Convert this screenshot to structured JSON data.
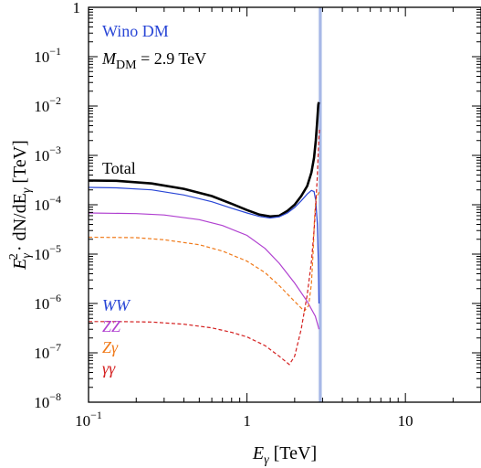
{
  "chart_data": {
    "type": "line",
    "title": "",
    "xlabel": "E_γ [TeV]",
    "ylabel": "E_γ^2 · dN/dE_γ [TeV]",
    "x_scale": "log",
    "y_scale": "log",
    "xlim": [
      0.1,
      30
    ],
    "ylim": [
      1e-08,
      1
    ],
    "grid": false,
    "x_ticks": [
      {
        "value": 0.1,
        "label": "10^-1"
      },
      {
        "value": 1,
        "label": "1"
      },
      {
        "value": 10,
        "label": "10"
      }
    ],
    "y_ticks": [
      {
        "value": 1,
        "label": "1"
      },
      {
        "value": 0.1,
        "label": "10^-1"
      },
      {
        "value": 0.01,
        "label": "10^-2"
      },
      {
        "value": 0.001,
        "label": "10^-3"
      },
      {
        "value": 0.0001,
        "label": "10^-4"
      },
      {
        "value": 1e-05,
        "label": "10^-5"
      },
      {
        "value": 1e-06,
        "label": "10^-6"
      },
      {
        "value": 1e-07,
        "label": "10^-7"
      },
      {
        "value": 1e-08,
        "label": "10^-8"
      }
    ],
    "annotations": {
      "model": "Wino DM",
      "mass": "M_DM = 2.9 TeV",
      "total_label": "Total"
    },
    "band": {
      "x_min": 2.82,
      "x_max": 2.98,
      "line_x": 2.9,
      "color": "#c8d4f0"
    },
    "series": [
      {
        "name": "Total",
        "color": "#000000",
        "dash": "solid",
        "points": [
          [
            0.1,
            0.00031
          ],
          [
            0.15,
            0.000305
          ],
          [
            0.25,
            0.00027
          ],
          [
            0.4,
            0.00021
          ],
          [
            0.6,
            0.00015
          ],
          [
            0.8,
            0.000105
          ],
          [
            1.0,
            7.8e-05
          ],
          [
            1.2,
            6.3e-05
          ],
          [
            1.4,
            5.8e-05
          ],
          [
            1.6,
            6e-05
          ],
          [
            1.8,
            7.5e-05
          ],
          [
            2.0,
            0.0001
          ],
          [
            2.2,
            0.00015
          ],
          [
            2.4,
            0.00024
          ],
          [
            2.55,
            0.00045
          ],
          [
            2.65,
            0.0009
          ],
          [
            2.72,
            0.002
          ],
          [
            2.77,
            0.0045
          ],
          [
            2.8,
            0.0075
          ],
          [
            2.82,
            0.0105
          ],
          [
            2.84,
            0.012
          ]
        ]
      },
      {
        "name": "WW",
        "color": "#2946d6",
        "dash": "solid",
        "points": [
          [
            0.1,
            0.000225
          ],
          [
            0.15,
            0.00022
          ],
          [
            0.25,
            0.0002
          ],
          [
            0.4,
            0.000158
          ],
          [
            0.6,
            0.000115
          ],
          [
            0.8,
            8.5e-05
          ],
          [
            1.0,
            6.8e-05
          ],
          [
            1.2,
            5.8e-05
          ],
          [
            1.4,
            5.4e-05
          ],
          [
            1.6,
            5.7e-05
          ],
          [
            1.8,
            6.8e-05
          ],
          [
            2.0,
            8.8e-05
          ],
          [
            2.2,
            0.00012
          ],
          [
            2.4,
            0.000165
          ],
          [
            2.55,
            0.000195
          ],
          [
            2.65,
            0.000185
          ],
          [
            2.72,
            0.00012
          ],
          [
            2.78,
            4e-05
          ],
          [
            2.82,
            8e-06
          ],
          [
            2.84,
            1.5e-06
          ],
          [
            2.85,
            1e-06
          ]
        ]
      },
      {
        "name": "ZZ",
        "color": "#b040d0",
        "dash": "solid",
        "points": [
          [
            0.1,
            6.8e-05
          ],
          [
            0.2,
            6.6e-05
          ],
          [
            0.3,
            6.2e-05
          ],
          [
            0.5,
            5e-05
          ],
          [
            0.7,
            3.8e-05
          ],
          [
            1.0,
            2.4e-05
          ],
          [
            1.3,
            1.3e-05
          ],
          [
            1.6,
            6.5e-06
          ],
          [
            2.0,
            2.6e-06
          ],
          [
            2.4,
            1.1e-06
          ],
          [
            2.7,
            5.5e-07
          ],
          [
            2.85,
            3e-07
          ]
        ]
      },
      {
        "name": "Zγ",
        "color": "#f07a1a",
        "dash": "dashed",
        "points": [
          [
            0.1,
            2.2e-05
          ],
          [
            0.2,
            2.15e-05
          ],
          [
            0.3,
            1.95e-05
          ],
          [
            0.5,
            1.55e-05
          ],
          [
            0.7,
            1.15e-05
          ],
          [
            1.0,
            7.2e-06
          ],
          [
            1.3,
            4.2e-06
          ],
          [
            1.6,
            2.3e-06
          ],
          [
            2.0,
            1.1e-06
          ],
          [
            2.3,
            7e-07
          ],
          [
            2.45,
            9e-07
          ],
          [
            2.55,
            2.5e-06
          ],
          [
            2.62,
            1.2e-05
          ],
          [
            2.66,
            4e-05
          ],
          [
            2.69,
            8e-05
          ],
          [
            2.72,
            0.00012
          ],
          [
            2.76,
            0.00015
          ],
          [
            2.8,
            0.00016
          ],
          [
            2.83,
            0.00017
          ],
          [
            2.85,
            0.00018
          ]
        ]
      },
      {
        "name": "γγ",
        "color": "#d42020",
        "dash": "dashed",
        "points": [
          [
            0.1,
            4.3e-07
          ],
          [
            0.15,
            4.3e-07
          ],
          [
            0.25,
            4.2e-07
          ],
          [
            0.4,
            3.8e-07
          ],
          [
            0.6,
            3.2e-07
          ],
          [
            0.8,
            2.6e-07
          ],
          [
            1.0,
            2.1e-07
          ],
          [
            1.3,
            1.4e-07
          ],
          [
            1.6,
            8.5e-08
          ],
          [
            1.85,
            5.8e-08
          ],
          [
            2.0,
            8.5e-08
          ],
          [
            2.2,
            3e-07
          ],
          [
            2.4,
            1.5e-06
          ],
          [
            2.55,
            7e-06
          ],
          [
            2.65,
            3e-05
          ],
          [
            2.72,
            0.0001
          ],
          [
            2.78,
            0.0004
          ],
          [
            2.82,
            0.0012
          ],
          [
            2.85,
            0.0025
          ],
          [
            2.87,
            0.0035
          ]
        ]
      }
    ],
    "legend": {
      "placement": "lower-left",
      "entries": [
        {
          "label": "WW",
          "color": "#2946d6"
        },
        {
          "label": "ZZ",
          "color": "#b040d0"
        },
        {
          "label": "Zγ",
          "color": "#f07a1a"
        },
        {
          "label": "γγ",
          "color": "#d42020"
        }
      ]
    }
  }
}
